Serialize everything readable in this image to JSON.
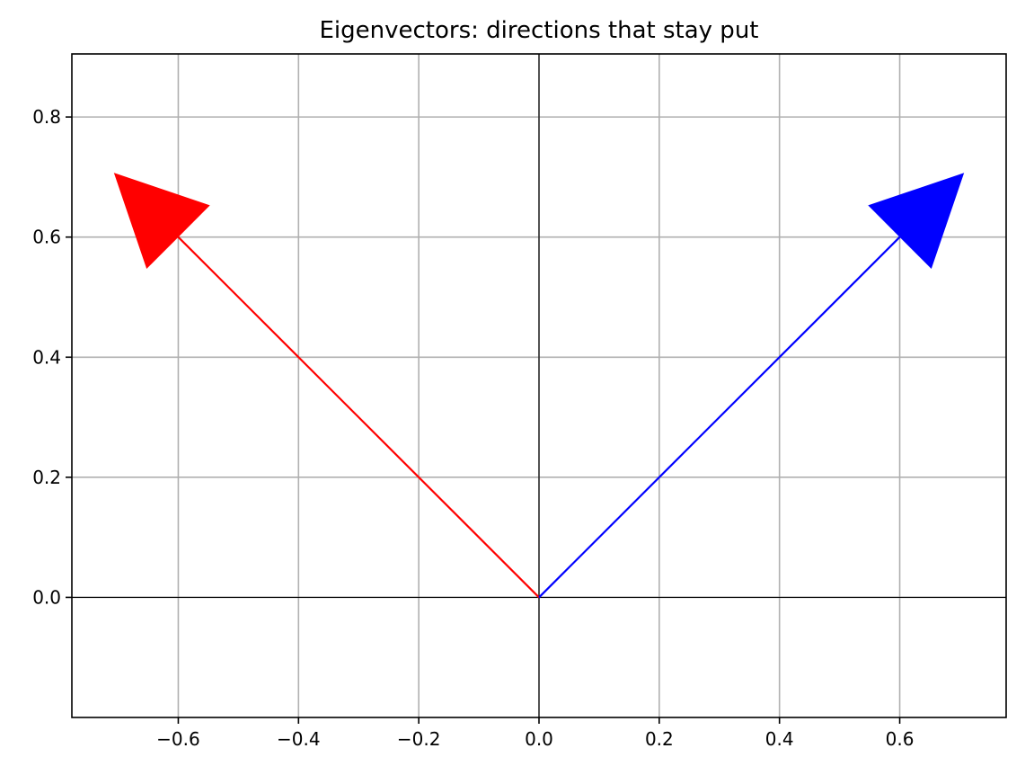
{
  "chart_data": {
    "type": "vector",
    "title": "Eigenvectors: directions that stay put",
    "xlabel": "",
    "ylabel": "",
    "xlim": [
      -0.777,
      0.777
    ],
    "ylim": [
      -0.2,
      0.905
    ],
    "x_ticks": [
      -0.6,
      -0.4,
      -0.2,
      0.0,
      0.2,
      0.4,
      0.6
    ],
    "x_tick_labels": [
      "−0.6",
      "−0.4",
      "−0.2",
      "0.0",
      "0.2",
      "0.4",
      "0.6"
    ],
    "y_ticks": [
      0.0,
      0.2,
      0.4,
      0.6,
      0.8
    ],
    "y_tick_labels": [
      "0.0",
      "0.2",
      "0.4",
      "0.6",
      "0.8"
    ],
    "grid": true,
    "zero_lines": true,
    "vectors": [
      {
        "start": [
          0,
          0
        ],
        "shaft_end": [
          -0.6,
          0.6
        ],
        "tip": [
          -0.707,
          0.707
        ],
        "color": "#ff0000"
      },
      {
        "start": [
          0,
          0
        ],
        "shaft_end": [
          0.6,
          0.6
        ],
        "tip": [
          0.707,
          0.707
        ],
        "color": "#0000ff"
      }
    ]
  }
}
